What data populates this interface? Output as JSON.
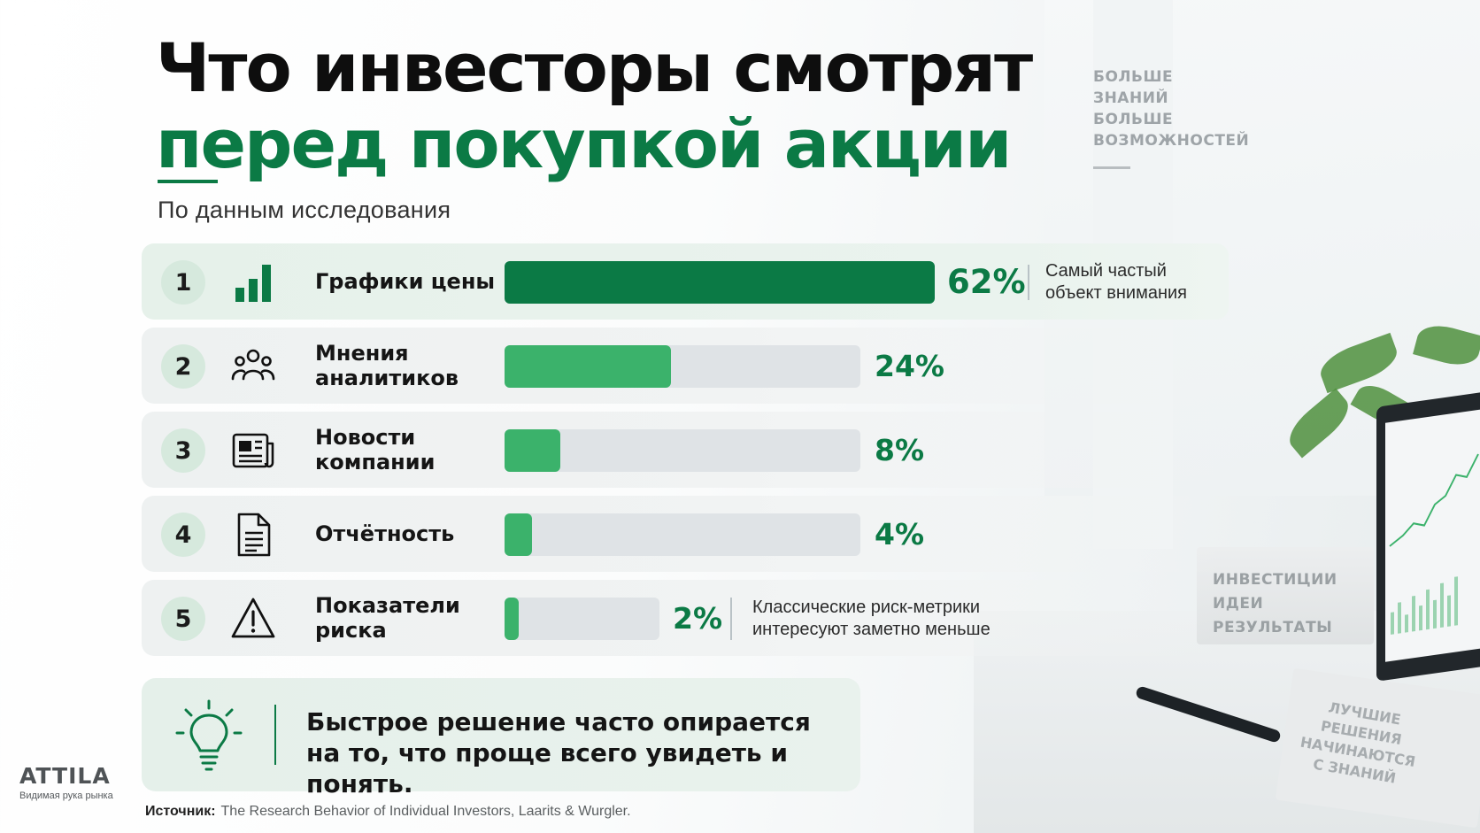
{
  "header": {
    "title_line1": "Что инвесторы смотрят",
    "title_line2": "перед покупкой акции",
    "subtitle": "По данным исследования"
  },
  "tagline": [
    "БОЛЬШЕ",
    "ЗНАНИЙ",
    "БОЛЬШЕ",
    "ВОЗМОЖНОСТЕЙ"
  ],
  "chart_data": {
    "type": "bar",
    "orientation": "horizontal",
    "categories": [
      "Графики цены",
      "Мнения аналитиков",
      "Новости компании",
      "Отчётность",
      "Показатели риска"
    ],
    "ranks": [
      "1",
      "2",
      "3",
      "4",
      "5"
    ],
    "values": [
      62,
      24,
      8,
      4,
      2
    ],
    "value_labels": [
      "62%",
      "24%",
      "8%",
      "4%",
      "2%"
    ],
    "icons": [
      "bar-chart-icon",
      "people-icon",
      "newspaper-icon",
      "document-icon",
      "warning-icon"
    ],
    "annotations": [
      {
        "category": "Графики цены",
        "text": "Самый частый объект внимания"
      },
      {
        "category": "Показатели риска",
        "text": "Классические риск-метрики интересуют заметно меньше"
      }
    ],
    "colors": {
      "top_bar": "#0b7a45",
      "bar": "#3bb26b",
      "track": "#dfe3e6",
      "value_text": "#0b7a45"
    }
  },
  "rows": [
    {
      "rank": "1",
      "label": "Графики цены",
      "value": "62%",
      "note": "Самый частый объект внимания"
    },
    {
      "rank": "2",
      "label": "Мнения аналитиков",
      "value": "24%"
    },
    {
      "rank": "3",
      "label": "Новости компании",
      "value": "8%"
    },
    {
      "rank": "4",
      "label": "Отчётность",
      "value": "4%"
    },
    {
      "rank": "5",
      "label": "Показатели риска",
      "value": "2%",
      "note": "Классические риск-метрики интересуют заметно меньше"
    }
  ],
  "callout": {
    "icon": "lightbulb-icon",
    "text_line1": "Быстрое решение часто опирается",
    "text_line2": "на то, что проще всего увидеть и понять."
  },
  "brand": {
    "name": "ATTILA",
    "tagline": "Видимая рука рынка"
  },
  "source": {
    "key": "Источник:",
    "text": "The Research Behavior of Individual Investors, Laarits & Wurgler."
  },
  "background_text": {
    "box": [
      "ИНВЕСТИЦИИ",
      "ИДЕИ",
      "РЕЗУЛЬТАТЫ"
    ],
    "notebook": [
      "ЛУЧШИЕ",
      "РЕШЕНИЯ",
      "НАЧИНАЮТСЯ",
      "С ЗНАНИЙ"
    ]
  }
}
